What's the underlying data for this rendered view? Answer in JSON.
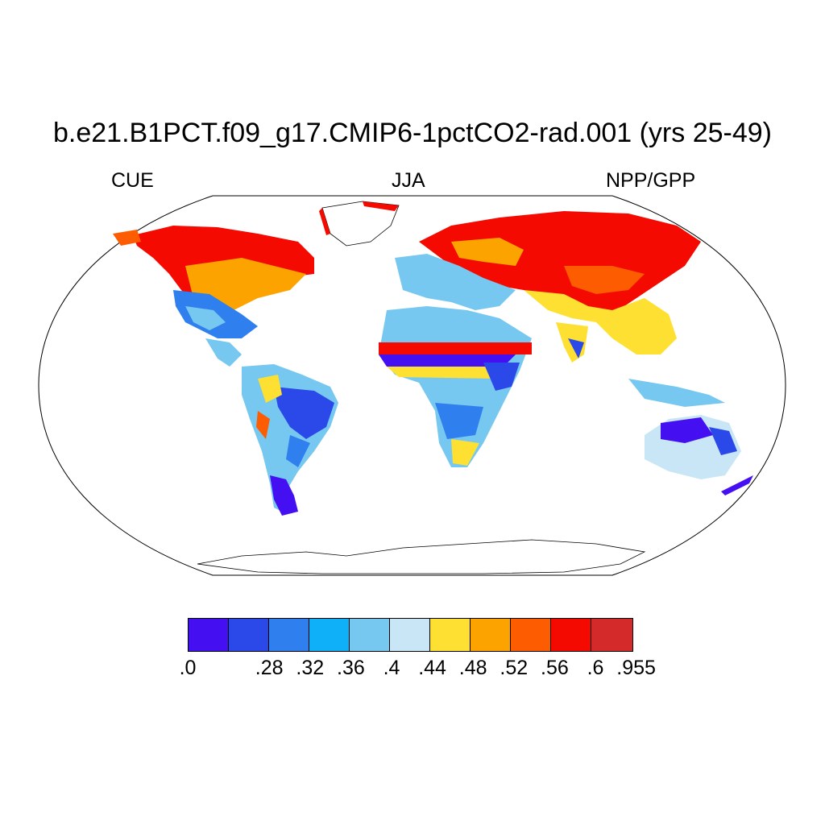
{
  "title": "b.e21.B1PCT.f09_g17.CMIP6-1pctCO2-rad.001 (yrs 25-49)",
  "left_label": "CUE",
  "center_label": "JJA",
  "right_label": "NPP/GPP",
  "colorbar": {
    "colors": [
      "#4410f2",
      "#2b48e8",
      "#2f7fef",
      "#0fb0f7",
      "#76c8f0",
      "#c8e6f6",
      "#fde031",
      "#fca300",
      "#fd5c00",
      "#f40a00",
      "#d42a2a"
    ],
    "tick_labels": [
      ".0",
      "",
      ".28",
      ".32",
      ".36",
      ".4",
      ".44",
      ".48",
      ".52",
      ".56",
      ".6",
      ".955"
    ]
  }
}
